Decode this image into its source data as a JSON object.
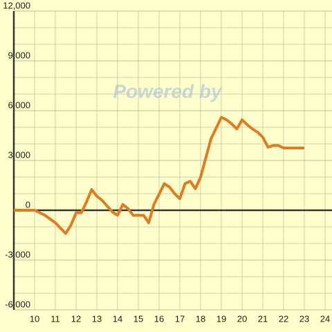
{
  "chart_data": {
    "type": "line",
    "watermark": "Powered by",
    "x": [
      9,
      10,
      10.5,
      11,
      11.5,
      11.75,
      12,
      12.25,
      12.5,
      12.75,
      13,
      13.25,
      13.75,
      14,
      14.25,
      14.5,
      14.75,
      15.25,
      15.5,
      15.75,
      16.25,
      16.5,
      16.75,
      17,
      17.25,
      17.5,
      17.75,
      18,
      18.25,
      18.5,
      18.75,
      19,
      19.25,
      19.5,
      19.75,
      20,
      20.25,
      20.5,
      20.75,
      21,
      21.25,
      21.5,
      21.75,
      22,
      23
    ],
    "series": [
      {
        "color": "#e07b20",
        "values": [
          0,
          0,
          -300,
          -750,
          -1400,
          -900,
          -150,
          -150,
          500,
          1250,
          850,
          600,
          -100,
          -300,
          350,
          100,
          -300,
          -300,
          -750,
          350,
          1600,
          1400,
          1000,
          700,
          1600,
          1750,
          1300,
          2000,
          3150,
          4300,
          4950,
          5600,
          5450,
          5200,
          4900,
          5450,
          5150,
          4900,
          4700,
          4400,
          3800,
          3900,
          3900,
          3750,
          3750
        ]
      }
    ],
    "xlim": [
      9,
      24.4
    ],
    "xticks": [
      10,
      11,
      12,
      13,
      14,
      15,
      16,
      17,
      18,
      19,
      20,
      21,
      22,
      23,
      24
    ],
    "ylim": [
      -6000,
      12000
    ],
    "yticks": [
      {
        "value": -6000,
        "label": "-6,000"
      },
      {
        "value": -3000,
        "label": "-3,000"
      },
      0,
      {
        "value": 3000,
        "label": "3,000"
      },
      {
        "value": 6000,
        "label": "6,000"
      },
      {
        "value": 9000,
        "label": "9,000"
      },
      {
        "value": 12000,
        "label": "12,000"
      }
    ],
    "yminorticks": [
      -5000,
      -4000,
      -2000,
      -1000,
      1000,
      2000,
      4000,
      5000,
      7000,
      8000,
      10000,
      11000
    ],
    "grid": true
  }
}
